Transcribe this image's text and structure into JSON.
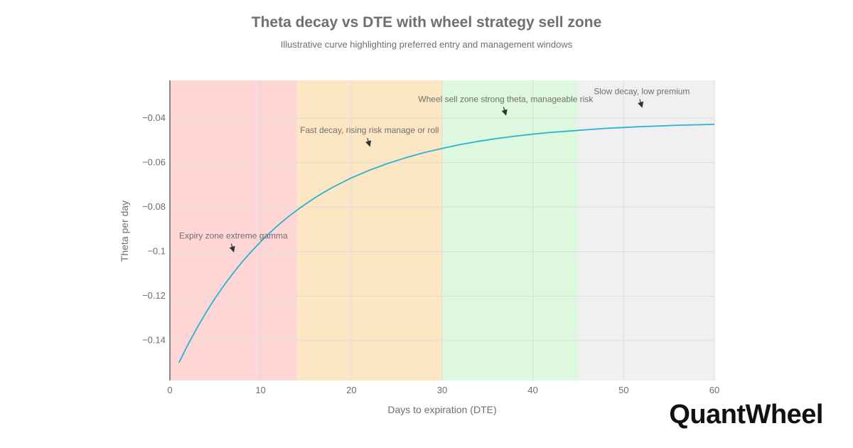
{
  "chart": {
    "title": "Theta decay vs DTE with wheel strategy sell zone",
    "subtitle": "Illustrative curve highlighting preferred entry and management windows"
  },
  "brand": {
    "logo_text": "QuantWheel"
  },
  "colors": {
    "curve": "#27b3d1",
    "zone_expiry": "#ffd6d6",
    "zone_fast": "#fde6c4",
    "zone_sell": "#def7df",
    "zone_slow": "#f0f0f0",
    "grid": "#dcdcdc",
    "text": "#6f6f6f"
  },
  "chart_data": {
    "type": "line",
    "title": "Theta decay vs DTE with wheel strategy sell zone",
    "subtitle": "Illustrative curve highlighting preferred entry and management windows",
    "xlabel": "Days to expiration (DTE)",
    "ylabel": "Theta per day",
    "xlim": [
      0,
      60
    ],
    "ylim": [
      -0.158,
      -0.023
    ],
    "x_ticks": [
      0,
      10,
      20,
      30,
      40,
      50,
      60
    ],
    "y_ticks": [
      -0.14,
      -0.12,
      -0.1,
      -0.08,
      -0.06,
      -0.04
    ],
    "y_tick_labels": [
      "−0.14",
      "−0.12",
      "−0.1",
      "−0.08",
      "−0.06",
      "−0.04"
    ],
    "grid": true,
    "series": [
      {
        "x": [
          1,
          2,
          3,
          4,
          5,
          6,
          7,
          8,
          9,
          10,
          11,
          12,
          13,
          14,
          15,
          16,
          17,
          18,
          19,
          20,
          22,
          24,
          26,
          28,
          30,
          32,
          34,
          36,
          38,
          40,
          42,
          44,
          46,
          48,
          50,
          52,
          54,
          56,
          58,
          60
        ],
        "y": [
          -0.15,
          -0.1418,
          -0.1343,
          -0.1273,
          -0.1209,
          -0.115,
          -0.1096,
          -0.1045,
          -0.0999,
          -0.0956,
          -0.0916,
          -0.0879,
          -0.0845,
          -0.0814,
          -0.0785,
          -0.0758,
          -0.0733,
          -0.071,
          -0.0689,
          -0.0669,
          -0.0634,
          -0.0604,
          -0.0578,
          -0.0555,
          -0.0536,
          -0.0519,
          -0.0504,
          -0.0492,
          -0.0481,
          -0.0472,
          -0.0464,
          -0.0458,
          -0.0452,
          -0.0446,
          -0.0442,
          -0.0438,
          -0.0435,
          -0.0432,
          -0.043,
          -0.0428
        ]
      }
    ],
    "zones": [
      {
        "x0": 0,
        "x1": 14,
        "color": "#ffd6d6"
      },
      {
        "x0": 14,
        "x1": 30,
        "color": "#fde6c4"
      },
      {
        "x0": 30,
        "x1": 45,
        "color": "#def7df"
      },
      {
        "x0": 45,
        "x1": 60,
        "color": "#f0f0f0"
      }
    ],
    "annotations": [
      {
        "text": "Expiry zone extreme gamma",
        "x": 7,
        "y": -0.1
      },
      {
        "text": "Fast decay, rising risk manage or roll",
        "x": 22,
        "y": -0.0525
      },
      {
        "text": "Wheel sell zone strong theta, manageable risk",
        "x": 37,
        "y": -0.0385
      },
      {
        "text": "Slow decay, low premium",
        "x": 52,
        "y": -0.035
      }
    ]
  }
}
